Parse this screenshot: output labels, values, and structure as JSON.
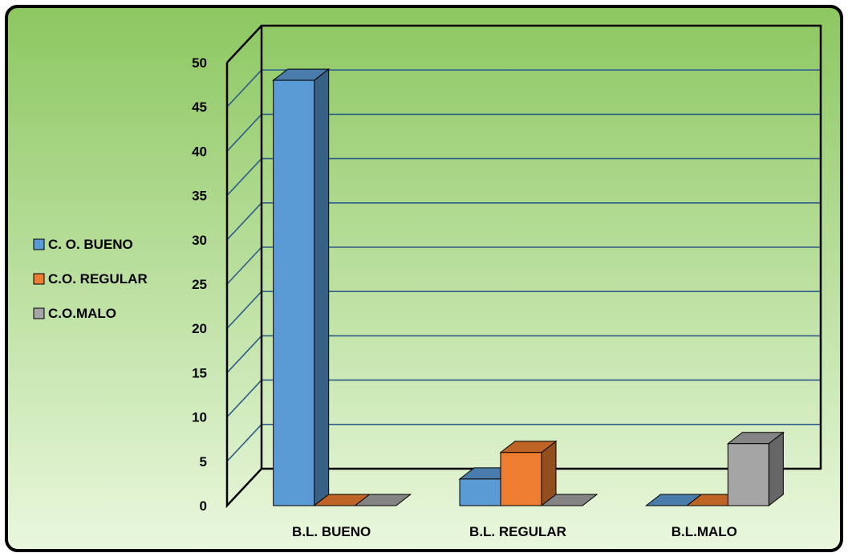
{
  "chart_data": {
    "type": "bar",
    "title": "",
    "xlabel": "",
    "ylabel": "",
    "categories": [
      "B.L. BUENO",
      "B.L. REGULAR",
      "B.L.MALO"
    ],
    "series": [
      {
        "name": "C. O. BUENO",
        "values": [
          48,
          3,
          0
        ],
        "color": "#5B9BD5"
      },
      {
        "name": "C.O. REGULAR",
        "values": [
          0,
          6,
          0
        ],
        "color": "#ED7D31"
      },
      {
        "name": "C.O.MALO",
        "values": [
          0,
          0,
          7
        ],
        "color": "#A5A5A5"
      }
    ],
    "ylim": [
      0,
      50
    ],
    "yticks": [
      0,
      5,
      10,
      15,
      20,
      25,
      30,
      35,
      40,
      45,
      50
    ],
    "grid": true,
    "legend_position": "left",
    "chart_style": "3d-clustered-column",
    "background": {
      "top": "#8cc760",
      "bottom": "#eaf8de"
    },
    "grid_color": "#2e5c8a",
    "frame_color": "#000000"
  }
}
